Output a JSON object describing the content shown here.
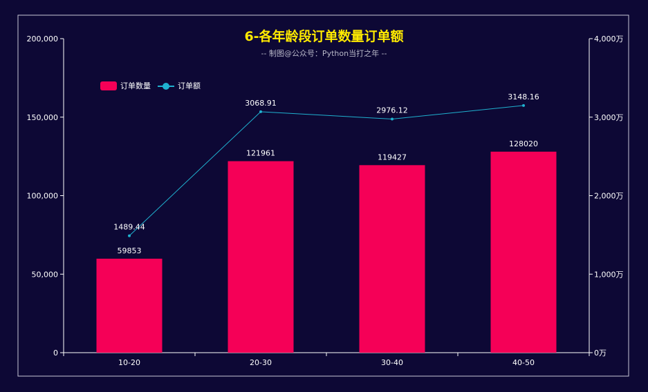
{
  "chart_data": {
    "type": "bar",
    "title": "6-各年龄段订单数量订单额",
    "subtitle": "-- 制图@公众号：Python当打之年 --",
    "categories": [
      "10-20",
      "20-30",
      "30-40",
      "40-50"
    ],
    "series": [
      {
        "name": "订单数量",
        "type": "bar",
        "axis": "left",
        "values": [
          59853,
          121961,
          119427,
          128020
        ],
        "labels": [
          "59853",
          "121961",
          "119427",
          "128020"
        ],
        "color": "#f50057"
      },
      {
        "name": "订单额",
        "type": "line",
        "axis": "right",
        "values": [
          1489.44,
          3068.91,
          2976.12,
          3148.16
        ],
        "labels": [
          "1489.44",
          "3068.91",
          "2976.12",
          "3148.16"
        ],
        "color": "#1fb2d0"
      }
    ],
    "y_left": {
      "min": 0,
      "max": 200000,
      "ticks": [
        0,
        50000,
        100000,
        150000,
        200000
      ],
      "tick_labels": [
        "0",
        "50,000",
        "100,000",
        "150,000",
        "200,000"
      ]
    },
    "y_right": {
      "min": 0,
      "max": 4000,
      "ticks": [
        0,
        1000,
        2000,
        3000,
        4000
      ],
      "tick_labels": [
        "0万",
        "1,000万",
        "2,000万",
        "3,000万",
        "4,000万"
      ]
    },
    "grid": false,
    "legend_position": "top-left"
  },
  "colors": {
    "background": "#0d0835",
    "title": "#ffea00",
    "axis": "#ffffff",
    "label": "#ffffff"
  }
}
